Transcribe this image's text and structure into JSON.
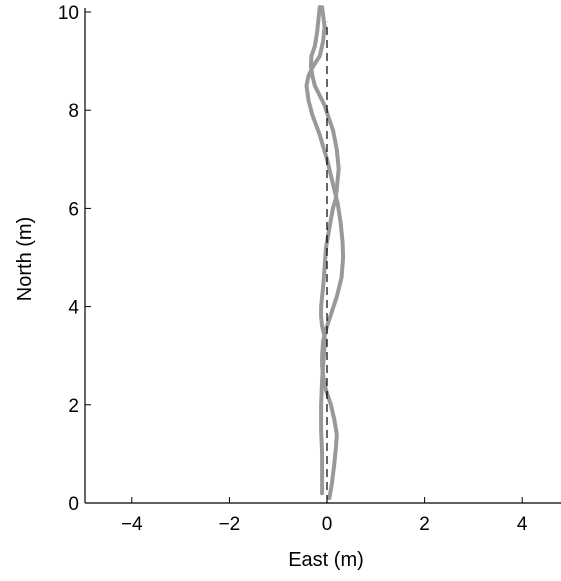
{
  "chart_data": {
    "type": "line",
    "title": "",
    "xlabel": "East (m)",
    "ylabel": "North (m)",
    "xlim": [
      -4.8,
      4.8
    ],
    "ylim": [
      0,
      10
    ],
    "xticks": [
      -4,
      -2,
      0,
      2,
      4
    ],
    "yticks": [
      0,
      2,
      4,
      6,
      8,
      10
    ],
    "xtick_labels": [
      "−4",
      "−2",
      "0",
      "2",
      "4"
    ],
    "ytick_labels": [
      "0",
      "2",
      "4",
      "6",
      "8",
      "10"
    ],
    "grid": false,
    "legend": "none",
    "colors": {
      "trajectory": "#999999",
      "reference": "#000000",
      "axis": "#000000"
    },
    "series": [
      {
        "style": "solid",
        "x": [
          -0.1,
          -0.1,
          -0.12,
          -0.12,
          -0.1,
          -0.08,
          -0.05,
          -0.05,
          -0.1,
          -0.12,
          -0.12,
          -0.08,
          -0.05,
          -0.02,
          0.05,
          0.12,
          0.18,
          0.2,
          0.22,
          0.24,
          0.2,
          0.12,
          0.05,
          -0.05,
          -0.15,
          -0.25,
          -0.3,
          -0.33,
          -0.32,
          -0.25,
          -0.2,
          -0.15
        ],
        "y": [
          0.2,
          1.0,
          1.5,
          2.0,
          2.5,
          2.8,
          3.2,
          3.4,
          3.6,
          3.8,
          4.0,
          4.4,
          4.8,
          5.2,
          5.6,
          6.0,
          6.2,
          6.4,
          6.6,
          6.8,
          7.2,
          7.6,
          7.8,
          8.1,
          8.3,
          8.5,
          8.7,
          8.9,
          9.1,
          9.3,
          9.6,
          10.1
        ]
      },
      {
        "style": "solid",
        "x": [
          0.05,
          0.1,
          0.15,
          0.18,
          0.2,
          0.15,
          0.08,
          -0.02,
          -0.08,
          -0.1,
          -0.1,
          -0.08,
          0.0,
          0.1,
          0.2,
          0.3,
          0.33,
          0.32,
          0.28,
          0.22,
          0.12,
          0.0,
          -0.15,
          -0.3,
          -0.38,
          -0.42,
          -0.38,
          -0.28,
          -0.15,
          -0.08,
          -0.05,
          -0.1
        ],
        "y": [
          0.1,
          0.4,
          0.8,
          1.1,
          1.4,
          1.7,
          2.0,
          2.3,
          2.6,
          2.8,
          3.0,
          3.3,
          3.6,
          3.9,
          4.2,
          4.6,
          5.0,
          5.3,
          5.7,
          6.1,
          6.5,
          7.0,
          7.5,
          7.9,
          8.2,
          8.5,
          8.7,
          8.9,
          9.1,
          9.4,
          9.7,
          10.1
        ]
      },
      {
        "style": "dashed",
        "x": [
          0,
          0
        ],
        "y": [
          0,
          9.8
        ]
      }
    ]
  }
}
